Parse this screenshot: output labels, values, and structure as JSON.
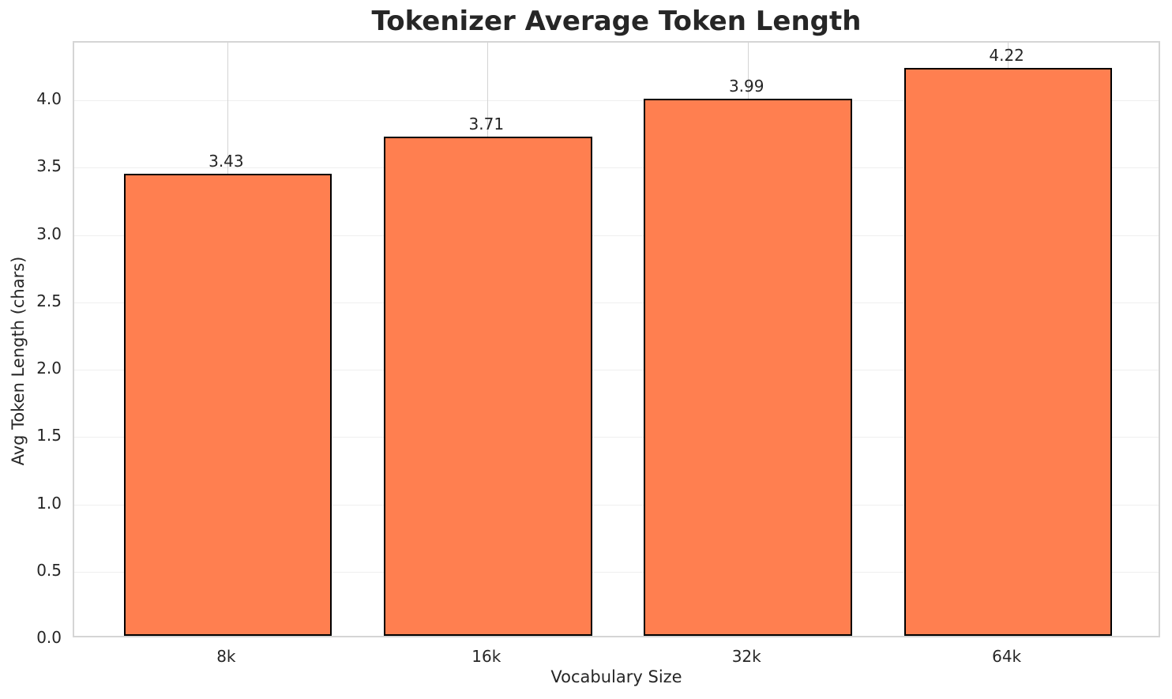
{
  "chart_data": {
    "type": "bar",
    "title": "Tokenizer Average Token Length",
    "xlabel": "Vocabulary Size",
    "ylabel": "Avg Token Length (chars)",
    "categories": [
      "8k",
      "16k",
      "32k",
      "64k"
    ],
    "values": [
      3.43,
      3.71,
      3.99,
      4.22
    ],
    "bar_value_labels": [
      "3.43",
      "3.71",
      "3.99",
      "4.22"
    ],
    "ylim": [
      0,
      4.43
    ],
    "yticks": [
      0.0,
      0.5,
      1.0,
      1.5,
      2.0,
      2.5,
      3.0,
      3.5,
      4.0
    ],
    "ytick_labels": [
      "0.0",
      "0.5",
      "1.0",
      "1.5",
      "2.0",
      "2.5",
      "3.0",
      "3.5",
      "4.0"
    ],
    "grid": true,
    "legend_position": "none",
    "colors": {
      "bar_fill": "#FF7F50",
      "bar_edge": "#000000",
      "horizontal_grid": "#efefef",
      "vertical_grid": "#d4d4d4",
      "plot_border": "#d5d5d5",
      "text": "#262626",
      "background": "#ffffff"
    }
  }
}
